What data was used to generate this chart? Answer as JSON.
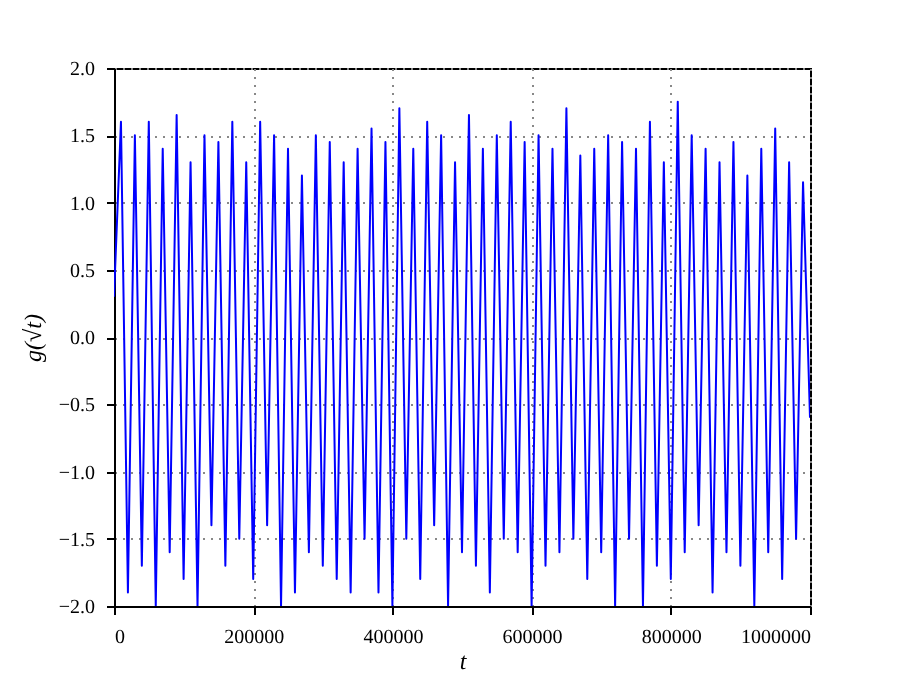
{
  "chart_data": {
    "type": "line",
    "xlabel": "t",
    "ylabel": "g(√t)",
    "color": "#0000ff",
    "grid": true,
    "line_style": "solid",
    "marker": "none",
    "xlim": [
      0,
      1000000
    ],
    "xticks": [
      0,
      200000,
      400000,
      600000,
      800000,
      1000000
    ],
    "ylim": [
      -2.0,
      2.0
    ],
    "yticks": [
      {
        "value": -2.0,
        "label": "−2.0"
      },
      {
        "value": -1.5,
        "label": "−1.5"
      },
      {
        "value": -1.0,
        "label": "−1.0"
      },
      {
        "value": -0.5,
        "label": "−0.5"
      },
      {
        "value": 0,
        "label": "0.0"
      },
      {
        "value": 0.5,
        "label": "0.5"
      },
      {
        "value": 1.0,
        "label": "1.0"
      },
      {
        "value": 1.5,
        "label": "1.5"
      },
      {
        "value": 2.0,
        "label": "2.0"
      }
    ],
    "x": [
      0,
      10000,
      20000,
      30000,
      40000,
      50000,
      60000,
      70000,
      80000,
      90000,
      100000,
      110000,
      120000,
      130000,
      140000,
      150000,
      160000,
      170000,
      180000,
      190000,
      200000,
      210000,
      220000,
      230000,
      240000,
      250000,
      260000,
      270000,
      280000,
      290000,
      300000,
      310000,
      320000,
      330000,
      340000,
      350000,
      360000,
      370000,
      380000,
      390000,
      400000,
      410000,
      420000,
      430000,
      440000,
      450000,
      460000,
      470000,
      480000,
      490000,
      500000,
      510000,
      520000,
      530000,
      540000,
      550000,
      560000,
      570000,
      580000,
      590000,
      600000,
      610000,
      620000,
      630000,
      640000,
      650000,
      660000,
      670000,
      680000,
      690000,
      700000,
      710000,
      720000,
      730000,
      740000,
      750000,
      760000,
      770000,
      780000,
      790000,
      800000,
      810000,
      820000,
      830000,
      840000,
      850000,
      860000,
      870000,
      880000,
      890000,
      900000,
      910000,
      920000,
      930000,
      940000,
      950000,
      960000,
      970000,
      980000,
      990000,
      1000000
    ],
    "values": [
      0.3,
      1.6,
      -1.9,
      1.5,
      -1.7,
      1.6,
      -2.0,
      1.4,
      -1.6,
      1.65,
      -1.8,
      1.3,
      -2.0,
      1.5,
      -1.4,
      1.45,
      -1.7,
      1.6,
      -1.5,
      1.3,
      -1.8,
      1.6,
      -1.4,
      1.5,
      -2.0,
      1.4,
      -1.9,
      1.2,
      -1.6,
      1.5,
      -1.7,
      1.45,
      -1.8,
      1.3,
      -1.9,
      1.4,
      -1.5,
      1.55,
      -1.9,
      1.45,
      -2.0,
      1.7,
      -1.5,
      1.4,
      -1.8,
      1.6,
      -1.4,
      1.5,
      -2.0,
      1.3,
      -1.6,
      1.65,
      -1.7,
      1.4,
      -1.9,
      1.5,
      -1.5,
      1.6,
      -1.6,
      1.45,
      -2.0,
      1.5,
      -1.7,
      1.4,
      -1.6,
      1.7,
      -1.5,
      1.35,
      -1.8,
      1.4,
      -1.6,
      1.5,
      -2.0,
      1.45,
      -1.5,
      1.4,
      -2.0,
      1.6,
      -1.7,
      1.3,
      -1.8,
      1.75,
      -1.6,
      1.5,
      -1.4,
      1.4,
      -1.9,
      1.3,
      -1.6,
      1.45,
      -1.7,
      1.2,
      -2.0,
      1.4,
      -1.6,
      1.55,
      -1.8,
      1.3,
      -1.5,
      1.15,
      -0.6
    ]
  }
}
